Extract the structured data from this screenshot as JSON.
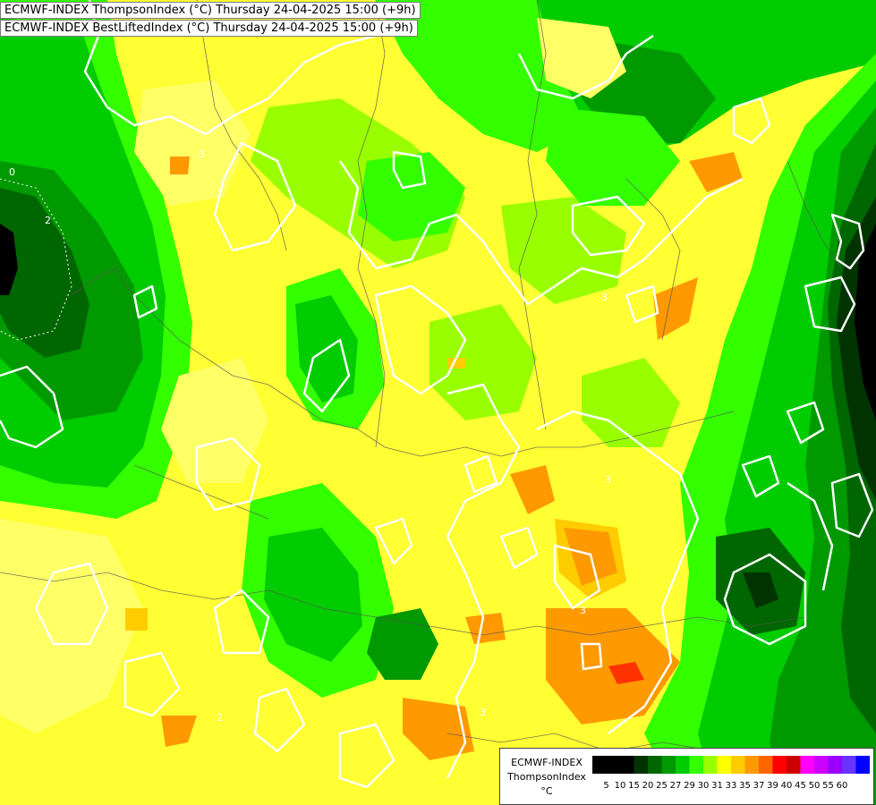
{
  "header": {
    "line1": "ECMWF-INDEX ThompsonIndex (°C) Thursday 24-04-2025 15:00 (+9h)",
    "line2": "ECMWF-INDEX BestLiftedIndex (°C) Thursday 24-04-2025 15:00 (+9h)"
  },
  "legend": {
    "model": "ECMWF-INDEX",
    "parameter": "ThompsonIndex",
    "unit": "°C",
    "ticks": [
      "5",
      "10",
      "15",
      "20",
      "25",
      "27",
      "29",
      "30",
      "31",
      "33",
      "35",
      "37",
      "39",
      "40",
      "45",
      "50",
      "55",
      "60"
    ],
    "colors": [
      "#000000",
      "#000000",
      "#000000",
      "#003300",
      "#006600",
      "#009900",
      "#00cc00",
      "#33ff00",
      "#99ff00",
      "#ffff00",
      "#ffcc00",
      "#ff9900",
      "#ff6600",
      "#ff0000",
      "#cc0000",
      "#ff00ff",
      "#cc00ff",
      "#9900ff",
      "#6633ff",
      "#0000ff"
    ]
  },
  "contour_labels": [
    "0",
    "2",
    "3",
    "3",
    "3",
    "3",
    "3",
    "2"
  ]
}
